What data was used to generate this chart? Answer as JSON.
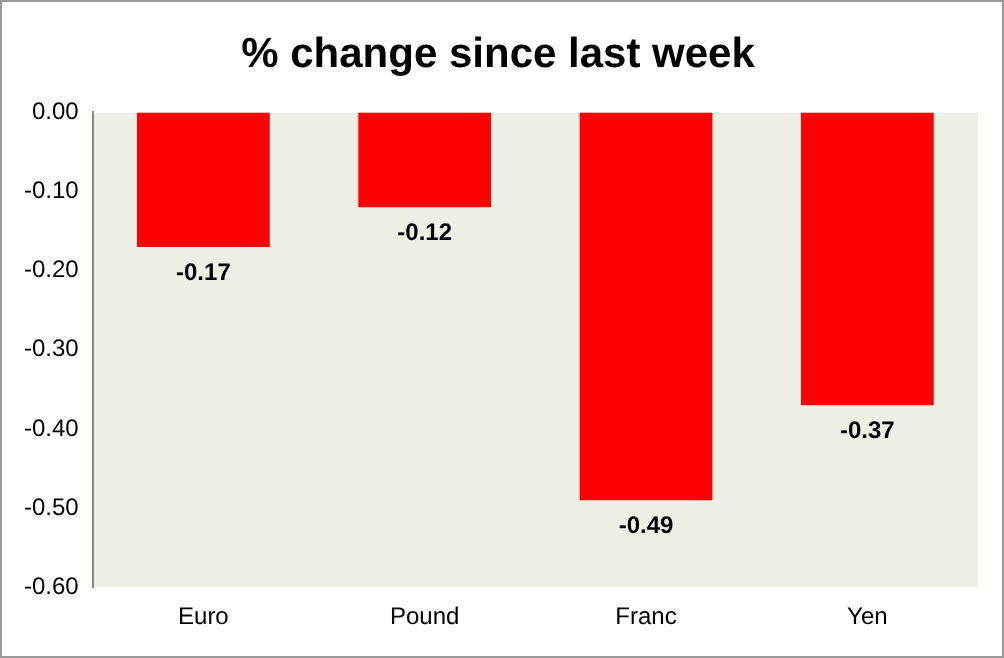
{
  "chart_data": {
    "type": "bar",
    "title": "% change since last week",
    "categories": [
      "Euro",
      "Pound",
      "Franc",
      "Yen"
    ],
    "values": [
      -0.17,
      -0.12,
      -0.49,
      -0.37
    ],
    "color": "#ff0000",
    "ylim": [
      -0.6,
      0
    ],
    "yticks": [
      {
        "value": 0,
        "label": "0.00"
      },
      {
        "value": -0.1,
        "label": "-0.10"
      },
      {
        "value": -0.2,
        "label": "-0.20"
      },
      {
        "value": -0.3,
        "label": "-0.30"
      },
      {
        "value": -0.4,
        "label": "-0.40"
      },
      {
        "value": -0.5,
        "label": "-0.50"
      },
      {
        "value": -0.6,
        "label": "-0.60"
      }
    ],
    "grid": false,
    "legend": false,
    "data_labels": true
  }
}
